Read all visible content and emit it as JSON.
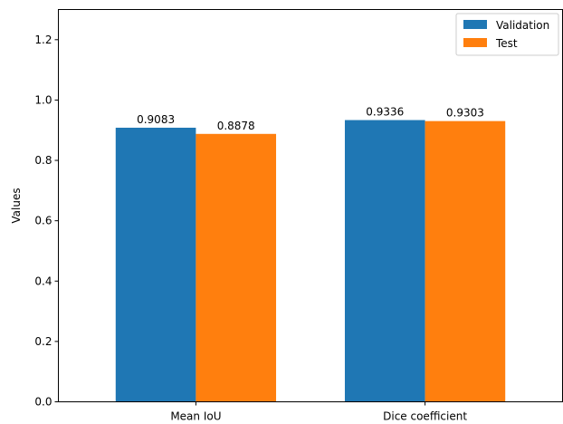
{
  "chart_data": {
    "type": "bar",
    "title": "",
    "xlabel": "",
    "ylabel": "Values",
    "categories": [
      "Mean IoU",
      "Dice coefficient"
    ],
    "ylim": [
      0,
      1.3
    ],
    "yticks": [
      0.0,
      0.2,
      0.4,
      0.6,
      0.8,
      1.0,
      1.2
    ],
    "ytick_labels": [
      "0.0",
      "0.2",
      "0.4",
      "0.6",
      "0.8",
      "1.0",
      "1.2"
    ],
    "series": [
      {
        "name": "Validation",
        "values": [
          0.9083,
          0.9336
        ],
        "labels": [
          "0.9083",
          "0.9336"
        ],
        "color": "#1f77b4"
      },
      {
        "name": "Test",
        "values": [
          0.8878,
          0.9303
        ],
        "labels": [
          "0.8878",
          "0.9303"
        ],
        "color": "#ff7f0e"
      }
    ],
    "grid": false,
    "legend_position": "top-right"
  }
}
